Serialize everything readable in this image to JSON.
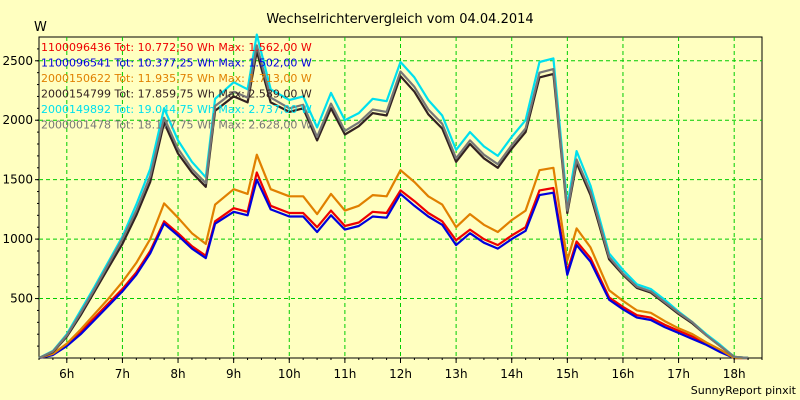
{
  "chart_data": {
    "type": "line",
    "title": "Wechselrichtervergleich vom 04.04.2014",
    "ylabel": "W",
    "xlabel": "",
    "footer": "SunnyReport pinxit",
    "ylim": [
      0,
      2700
    ],
    "xlim": [
      5.5,
      18.5
    ],
    "x_ticks": [
      6,
      7,
      8,
      9,
      10,
      11,
      12,
      13,
      14,
      15,
      16,
      17,
      18
    ],
    "x_tick_labels": [
      "6h",
      "7h",
      "8h",
      "9h",
      "10h",
      "11h",
      "12h",
      "13h",
      "14h",
      "15h",
      "16h",
      "17h",
      "18h"
    ],
    "y_ticks": [
      500,
      1000,
      1500,
      2000,
      2500
    ],
    "y_tick_labels": [
      "500",
      "1000",
      "1500",
      "2000",
      "2500"
    ],
    "grid": true,
    "legend_position": "top-left",
    "x": [
      5.5,
      5.75,
      6.0,
      6.25,
      6.5,
      6.75,
      7.0,
      7.25,
      7.5,
      7.75,
      8.0,
      8.25,
      8.5,
      8.667,
      9.0,
      9.25,
      9.417,
      9.667,
      10.0,
      10.25,
      10.5,
      10.75,
      11.0,
      11.25,
      11.5,
      11.75,
      12.0,
      12.25,
      12.5,
      12.75,
      13.0,
      13.25,
      13.5,
      13.75,
      14.0,
      14.25,
      14.5,
      14.75,
      15.0,
      15.167,
      15.417,
      15.75,
      16.0,
      16.25,
      16.5,
      16.75,
      17.0,
      17.25,
      17.5,
      17.75,
      18.0,
      18.25
    ],
    "series": [
      {
        "name": "1100096436 Tot: 10.772,50 Wh Max: 1.562,00 W",
        "color": "#ee0000",
        "values": [
          0,
          30,
          110,
          220,
          340,
          460,
          580,
          720,
          900,
          1150,
          1050,
          940,
          860,
          1150,
          1260,
          1230,
          1560,
          1280,
          1220,
          1220,
          1100,
          1240,
          1110,
          1140,
          1230,
          1220,
          1410,
          1320,
          1220,
          1150,
          990,
          1080,
          1000,
          950,
          1030,
          1100,
          1410,
          1430,
          730,
          980,
          840,
          510,
          430,
          360,
          340,
          280,
          230,
          180,
          120,
          60,
          0,
          0
        ]
      },
      {
        "name": "1100096541 Tot: 10.377,25 Wh Max: 1.502,00 W",
        "color": "#0000dd",
        "values": [
          0,
          25,
          100,
          200,
          320,
          440,
          560,
          700,
          880,
          1130,
          1030,
          920,
          840,
          1130,
          1230,
          1200,
          1500,
          1250,
          1190,
          1190,
          1060,
          1200,
          1080,
          1110,
          1190,
          1180,
          1380,
          1280,
          1190,
          1120,
          950,
          1050,
          970,
          920,
          1000,
          1070,
          1370,
          1390,
          700,
          950,
          810,
          490,
          410,
          340,
          320,
          260,
          210,
          160,
          110,
          50,
          0,
          0
        ]
      },
      {
        "name": "2000150622 Tot: 11.935,75 Wh Max: 1.713,00 W",
        "color": "#e08000",
        "values": [
          0,
          35,
          120,
          240,
          370,
          500,
          640,
          800,
          1000,
          1300,
          1180,
          1050,
          960,
          1290,
          1420,
          1380,
          1710,
          1420,
          1360,
          1360,
          1210,
          1380,
          1240,
          1280,
          1370,
          1360,
          1580,
          1480,
          1360,
          1290,
          1100,
          1210,
          1120,
          1060,
          1160,
          1240,
          1580,
          1600,
          820,
          1090,
          930,
          570,
          480,
          400,
          380,
          310,
          250,
          200,
          130,
          70,
          0,
          0
        ]
      },
      {
        "name": "2000154799 Tot: 17.859,75 Wh Max: 2.589,00 W",
        "color": "#332222",
        "values": [
          0,
          50,
          180,
          360,
          560,
          760,
          960,
          1200,
          1480,
          1980,
          1720,
          1560,
          1440,
          2080,
          2200,
          2150,
          2580,
          2150,
          2070,
          2100,
          1830,
          2100,
          1880,
          1950,
          2060,
          2040,
          2370,
          2240,
          2050,
          1930,
          1650,
          1800,
          1680,
          1600,
          1760,
          1900,
          2360,
          2390,
          1220,
          1640,
          1370,
          830,
          700,
          590,
          550,
          460,
          370,
          290,
          190,
          100,
          10,
          0
        ]
      },
      {
        "name": "2000149892 Tot: 19.044,75 Wh Max: 2.737,00 W",
        "color": "#00e0ee",
        "values": [
          0,
          60,
          200,
          400,
          600,
          810,
          1020,
          1290,
          1590,
          2100,
          1830,
          1650,
          1520,
          2180,
          2320,
          2260,
          2720,
          2260,
          2170,
          2200,
          1940,
          2230,
          2000,
          2060,
          2180,
          2160,
          2490,
          2360,
          2170,
          2040,
          1750,
          1900,
          1780,
          1700,
          1860,
          2000,
          2490,
          2520,
          1280,
          1740,
          1450,
          880,
          740,
          620,
          580,
          490,
          390,
          300,
          200,
          110,
          10,
          0
        ]
      },
      {
        "name": "2000001478 Tot: 18.177,75 Wh Max: 2.628,00 W",
        "color": "#777777",
        "values": [
          0,
          55,
          190,
          380,
          580,
          790,
          1000,
          1240,
          1530,
          2020,
          1760,
          1590,
          1470,
          2120,
          2240,
          2190,
          2630,
          2190,
          2100,
          2130,
          1860,
          2140,
          1910,
          1980,
          2090,
          2070,
          2410,
          2280,
          2090,
          1970,
          1680,
          1830,
          1710,
          1630,
          1790,
          1930,
          2400,
          2430,
          1240,
          1670,
          1400,
          850,
          710,
          600,
          560,
          470,
          380,
          300,
          190,
          100,
          10,
          0
        ]
      }
    ]
  }
}
